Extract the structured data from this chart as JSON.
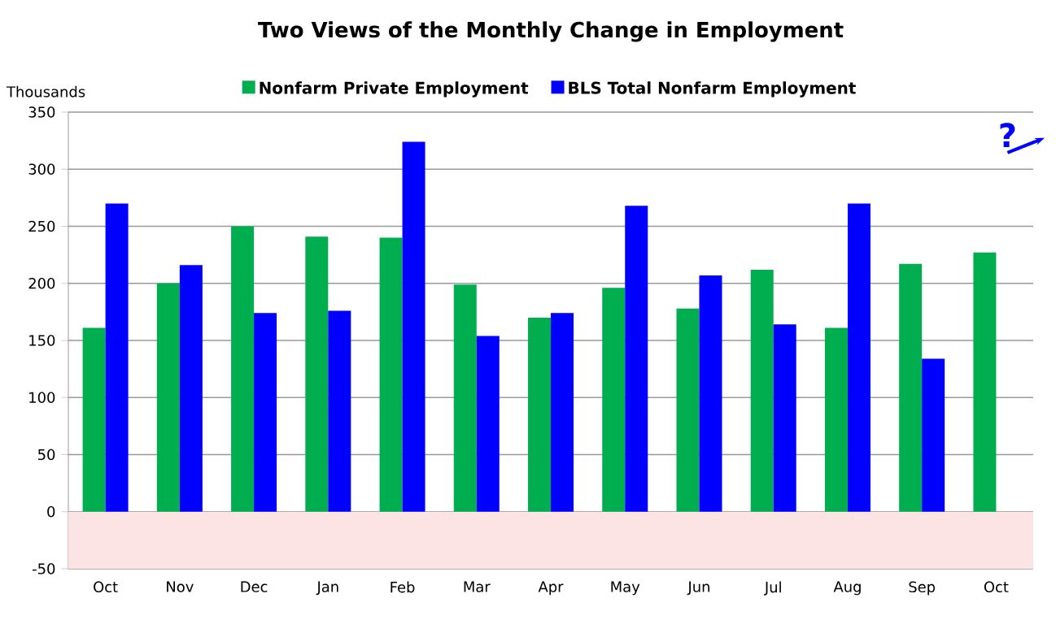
{
  "chart_data": {
    "type": "bar",
    "title": "Two Views of the Monthly Change in Employment",
    "ylabel": "Thousands",
    "categories": [
      "Oct",
      "Nov",
      "Dec",
      "Jan",
      "Feb",
      "Mar",
      "Apr",
      "May",
      "Jun",
      "Jul",
      "Aug",
      "Sep",
      "Oct"
    ],
    "series": [
      {
        "name": "Nonfarm Private Employment",
        "color": "#00ad4f",
        "values": [
          161,
          200,
          250,
          241,
          240,
          199,
          170,
          196,
          178,
          212,
          161,
          217,
          227
        ]
      },
      {
        "name": "BLS Total Nonfarm Employment",
        "color": "#0000ff",
        "values": [
          270,
          216,
          174,
          176,
          324,
          154,
          174,
          268,
          207,
          164,
          270,
          134,
          null
        ]
      }
    ],
    "ylim": [
      -50,
      350
    ],
    "yticks": [
      -50,
      0,
      50,
      100,
      150,
      200,
      250,
      300,
      350
    ],
    "bands": [
      {
        "axis": "y",
        "from": -50,
        "to": 0,
        "color": "#fde4e4"
      }
    ],
    "annotations": [
      "?"
    ],
    "grid": "y",
    "legend": "top"
  }
}
